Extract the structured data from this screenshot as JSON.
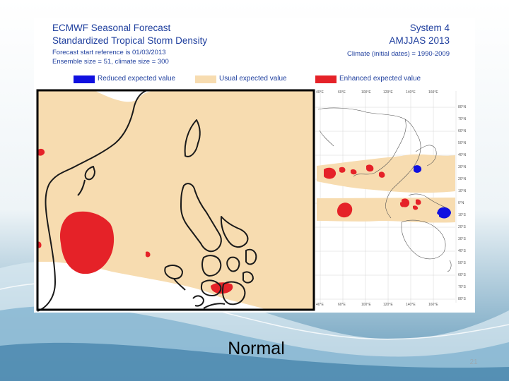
{
  "figure": {
    "title_left": "ECMWF Seasonal Forecast",
    "title_right": "System 4",
    "subtitle_left": "Standardized Tropical Storm Density",
    "subtitle_right": "AMJJAS 2013",
    "info_line1": "Forecast start reference is 01/03/2013",
    "info_line2": "Ensemble size = 51, climate size = 300",
    "climate_line": "Climate (initial dates) = 1990-2009",
    "legend": [
      {
        "label": "Reduced expected value",
        "color": "#1010e0"
      },
      {
        "label": "Usual expected value",
        "color": "#f7dcb0"
      },
      {
        "label": "Enhanced expected value",
        "color": "#e52228"
      }
    ],
    "lon_ticks": [
      "40°E",
      "60°E",
      "100°E",
      "120°E",
      "140°E",
      "160°E"
    ],
    "lat_ticks": [
      "80°N",
      "70°N",
      "60°N",
      "50°N",
      "40°N",
      "30°N",
      "20°N",
      "10°N",
      "0°N",
      "10°S",
      "20°S",
      "30°S",
      "40°S",
      "50°S",
      "60°S",
      "70°S",
      "80°S"
    ]
  },
  "slide": {
    "caption": "Normal",
    "page_number": "21"
  },
  "colors": {
    "usual": "#f7dcb0",
    "enhanced": "#e52228",
    "reduced": "#1010e0",
    "coast": "#1a1a1a"
  }
}
